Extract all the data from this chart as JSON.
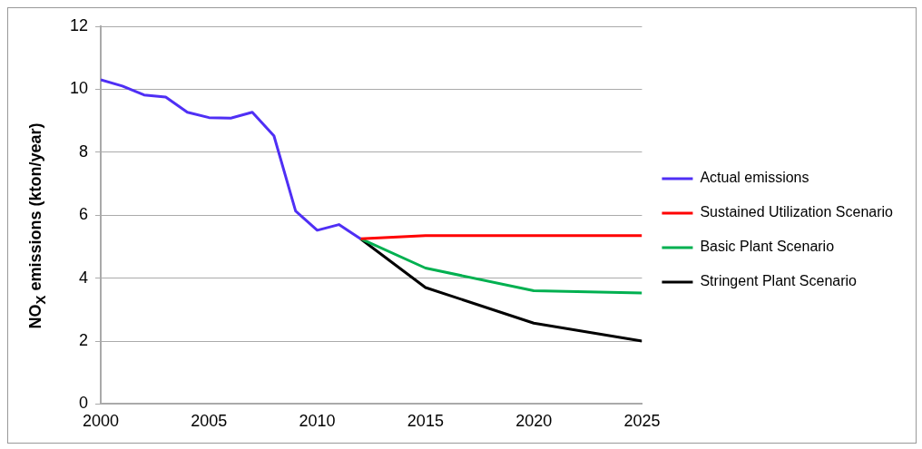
{
  "chart_data": {
    "type": "line",
    "ylabel": "NO$_{X}$ emissions (kton/year)",
    "xlim": [
      2000,
      2025
    ],
    "xticks": [
      2000,
      2005,
      2010,
      2015,
      2020,
      2025
    ],
    "ylim": [
      0,
      12
    ],
    "yticks": [
      0,
      2,
      4,
      6,
      8,
      10,
      12
    ],
    "grid": "y",
    "legend": "right",
    "marker": "none",
    "line_style": "solid",
    "series": [
      {
        "name": "Actual emissions",
        "color": "#4f2ff5",
        "x": [
          2000,
          2001,
          2002,
          2003,
          2004,
          2005,
          2006,
          2007,
          2008,
          2009,
          2010,
          2011,
          2012
        ],
        "values": [
          10.3,
          10.1,
          9.82,
          9.75,
          9.27,
          9.1,
          9.08,
          9.27,
          8.52,
          6.13,
          5.52,
          5.7,
          5.25
        ]
      },
      {
        "name": "Sustained Utilization Scenario",
        "color": "#ff0000",
        "x": [
          2012,
          2015,
          2020,
          2025
        ],
        "values": [
          5.25,
          5.35,
          5.35,
          5.35
        ]
      },
      {
        "name": "Basic Plant Scenario",
        "color": "#00b050",
        "x": [
          2012,
          2015,
          2020,
          2025
        ],
        "values": [
          5.25,
          4.32,
          3.6,
          3.53
        ]
      },
      {
        "name": "Stringent Plant Scenario",
        "color": "#000000",
        "x": [
          2012,
          2015,
          2020,
          2025
        ],
        "values": [
          5.25,
          3.7,
          2.57,
          2.0
        ]
      }
    ]
  }
}
